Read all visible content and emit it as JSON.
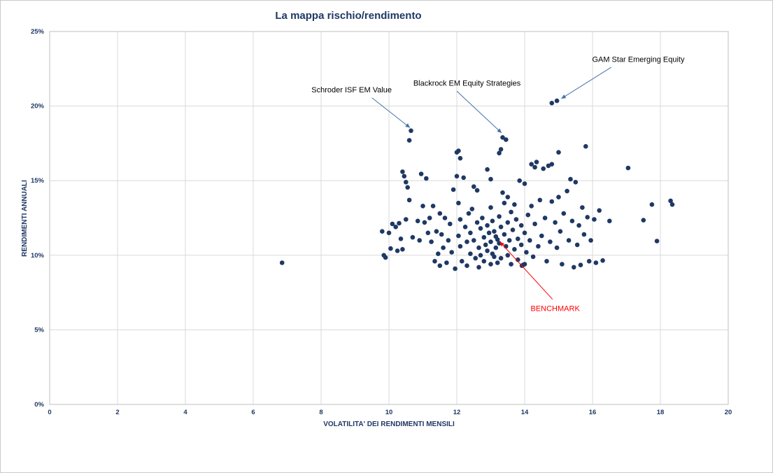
{
  "chart_data": {
    "type": "scatter",
    "title": "La mappa rischio/rendimento",
    "xlabel": "VOLATILITA' DEI RENDIMENTI MENSILI",
    "ylabel": "RENDIMENTI ANNUALI",
    "xlim": [
      0,
      20
    ],
    "ylim": [
      0,
      25
    ],
    "x_ticks": [
      0,
      2,
      4,
      6,
      8,
      10,
      12,
      14,
      16,
      18,
      20
    ],
    "x_tick_labels": [
      "0",
      "2",
      "4",
      "6",
      "8",
      "10",
      "12",
      "14",
      "16",
      "18",
      "20"
    ],
    "y_ticks": [
      0,
      5,
      10,
      15,
      20,
      25
    ],
    "y_tick_labels": [
      "0%",
      "5%",
      "10%",
      "15%",
      "20%",
      "25%"
    ],
    "grid": true,
    "legend": "none",
    "point_color": "#1f3864",
    "grid_color": "#d9d9d9",
    "border_color": "#bfbfbf",
    "axis_text_color": "#1f3864",
    "points": [
      [
        6.85,
        9.5
      ],
      [
        9.8,
        11.6
      ],
      [
        9.85,
        10.0
      ],
      [
        9.9,
        9.85
      ],
      [
        10.0,
        11.5
      ],
      [
        10.05,
        10.45
      ],
      [
        10.1,
        12.1
      ],
      [
        10.2,
        11.9
      ],
      [
        10.25,
        10.3
      ],
      [
        10.3,
        12.15
      ],
      [
        10.35,
        11.1
      ],
      [
        10.4,
        15.6
      ],
      [
        10.4,
        10.4
      ],
      [
        10.45,
        15.3
      ],
      [
        10.5,
        14.9
      ],
      [
        10.5,
        12.4
      ],
      [
        10.55,
        14.55
      ],
      [
        10.6,
        17.7
      ],
      [
        10.65,
        18.35
      ],
      [
        10.6,
        13.7
      ],
      [
        10.7,
        11.2
      ],
      [
        10.85,
        12.3
      ],
      [
        10.9,
        11.0
      ],
      [
        10.95,
        15.45
      ],
      [
        11.0,
        13.3
      ],
      [
        11.05,
        12.2
      ],
      [
        11.1,
        15.15
      ],
      [
        11.15,
        11.5
      ],
      [
        11.2,
        12.5
      ],
      [
        11.25,
        10.9
      ],
      [
        11.3,
        13.3
      ],
      [
        11.35,
        9.6
      ],
      [
        11.4,
        11.6
      ],
      [
        11.45,
        10.1
      ],
      [
        11.5,
        12.8
      ],
      [
        11.5,
        9.3
      ],
      [
        11.55,
        11.4
      ],
      [
        11.6,
        10.5
      ],
      [
        11.65,
        12.5
      ],
      [
        11.7,
        9.5
      ],
      [
        11.75,
        11.0
      ],
      [
        11.8,
        12.1
      ],
      [
        11.85,
        10.2
      ],
      [
        11.9,
        14.4
      ],
      [
        11.95,
        9.1
      ],
      [
        12.0,
        16.9
      ],
      [
        12.0,
        15.3
      ],
      [
        12.05,
        17.0
      ],
      [
        12.05,
        13.5
      ],
      [
        12.05,
        11.3
      ],
      [
        12.1,
        16.5
      ],
      [
        12.1,
        12.4
      ],
      [
        12.1,
        10.6
      ],
      [
        12.15,
        9.6
      ],
      [
        12.2,
        15.2
      ],
      [
        12.25,
        11.9
      ],
      [
        12.3,
        10.9
      ],
      [
        12.3,
        9.3
      ],
      [
        12.35,
        12.8
      ],
      [
        12.4,
        11.5
      ],
      [
        12.4,
        10.1
      ],
      [
        12.45,
        13.1
      ],
      [
        12.5,
        14.6
      ],
      [
        12.5,
        11.0
      ],
      [
        12.55,
        9.8
      ],
      [
        12.6,
        14.35
      ],
      [
        12.6,
        12.2
      ],
      [
        12.65,
        10.5
      ],
      [
        12.65,
        9.2
      ],
      [
        12.7,
        11.8
      ],
      [
        12.7,
        10.0
      ],
      [
        12.75,
        12.5
      ],
      [
        12.8,
        11.2
      ],
      [
        12.8,
        9.6
      ],
      [
        12.85,
        10.7
      ],
      [
        12.9,
        15.75
      ],
      [
        12.9,
        12.0
      ],
      [
        12.9,
        10.3
      ],
      [
        12.95,
        11.5
      ],
      [
        13.0,
        15.1
      ],
      [
        13.0,
        13.2
      ],
      [
        13.0,
        10.9
      ],
      [
        13.0,
        9.4
      ],
      [
        13.05,
        12.3
      ],
      [
        13.05,
        10.1
      ],
      [
        13.1,
        11.6
      ],
      [
        13.1,
        9.9
      ],
      [
        13.15,
        11.25
      ],
      [
        13.15,
        10.5
      ],
      [
        13.2,
        11.05
      ],
      [
        13.2,
        9.5
      ],
      [
        13.25,
        12.6
      ],
      [
        13.25,
        10.8
      ],
      [
        13.3,
        11.9
      ],
      [
        13.3,
        9.8
      ],
      [
        13.25,
        16.85
      ],
      [
        13.3,
        17.1
      ],
      [
        13.35,
        17.9
      ],
      [
        13.45,
        17.75
      ],
      [
        13.35,
        14.2
      ],
      [
        13.4,
        13.5
      ],
      [
        13.4,
        11.4
      ],
      [
        13.45,
        10.6
      ],
      [
        13.5,
        13.9
      ],
      [
        13.5,
        12.2
      ],
      [
        13.5,
        10.0
      ],
      [
        13.55,
        11.0
      ],
      [
        13.6,
        12.9
      ],
      [
        13.6,
        9.4
      ],
      [
        13.65,
        11.7
      ],
      [
        13.7,
        13.4
      ],
      [
        13.7,
        10.4
      ],
      [
        13.75,
        12.4
      ],
      [
        13.8,
        11.1
      ],
      [
        13.8,
        9.7
      ],
      [
        13.85,
        15.0
      ],
      [
        13.9,
        12.0
      ],
      [
        13.9,
        10.7
      ],
      [
        13.92,
        9.3
      ],
      [
        13.95,
        9.35
      ],
      [
        14.0,
        9.4
      ],
      [
        14.0,
        14.8
      ],
      [
        14.0,
        11.5
      ],
      [
        14.05,
        10.2
      ],
      [
        14.1,
        12.7
      ],
      [
        14.15,
        11.0
      ],
      [
        14.2,
        16.1
      ],
      [
        14.2,
        13.3
      ],
      [
        14.25,
        9.9
      ],
      [
        14.3,
        15.9
      ],
      [
        14.3,
        12.1
      ],
      [
        14.35,
        16.25
      ],
      [
        14.4,
        10.6
      ],
      [
        14.45,
        13.7
      ],
      [
        14.5,
        11.3
      ],
      [
        14.55,
        15.8
      ],
      [
        14.6,
        12.5
      ],
      [
        14.65,
        9.6
      ],
      [
        14.7,
        16.0
      ],
      [
        14.75,
        10.9
      ],
      [
        14.8,
        16.1
      ],
      [
        14.8,
        13.6
      ],
      [
        14.8,
        20.2
      ],
      [
        14.95,
        20.35
      ],
      [
        14.9,
        12.2
      ],
      [
        14.95,
        10.5
      ],
      [
        15.0,
        16.9
      ],
      [
        15.0,
        13.9
      ],
      [
        15.05,
        11.6
      ],
      [
        15.1,
        9.4
      ],
      [
        15.15,
        12.8
      ],
      [
        15.25,
        14.3
      ],
      [
        15.3,
        11.0
      ],
      [
        15.35,
        15.1
      ],
      [
        15.4,
        12.3
      ],
      [
        15.45,
        9.2
      ],
      [
        15.5,
        14.9
      ],
      [
        15.55,
        10.7
      ],
      [
        15.6,
        12.0
      ],
      [
        15.65,
        9.35
      ],
      [
        15.7,
        13.2
      ],
      [
        15.75,
        11.4
      ],
      [
        15.8,
        17.3
      ],
      [
        15.85,
        12.55
      ],
      [
        15.9,
        9.6
      ],
      [
        15.95,
        11.0
      ],
      [
        16.05,
        12.4
      ],
      [
        16.1,
        9.5
      ],
      [
        16.2,
        13.0
      ],
      [
        16.3,
        9.65
      ],
      [
        16.5,
        12.3
      ],
      [
        17.05,
        15.85
      ],
      [
        17.5,
        12.35
      ],
      [
        17.75,
        13.4
      ],
      [
        17.9,
        10.95
      ],
      [
        18.3,
        13.65
      ],
      [
        18.35,
        13.4
      ]
    ],
    "annotations": [
      {
        "label": "Schroder ISF EM Value",
        "text_color": "#000000",
        "arrow_color": "#4472a8",
        "text": [
          8.9,
          21.1
        ],
        "arrow_from": [
          9.5,
          20.55
        ],
        "arrow_to": [
          10.62,
          18.55
        ]
      },
      {
        "label": "Blackrock EM Equity Strategies",
        "text_color": "#000000",
        "arrow_color": "#4472a8",
        "text": [
          12.3,
          21.55
        ],
        "arrow_from": [
          12.0,
          21.0
        ],
        "arrow_to": [
          13.32,
          18.2
        ]
      },
      {
        "label": "GAM Star Emerging Equity",
        "text_color": "#000000",
        "arrow_color": "#4472a8",
        "text": [
          17.35,
          23.15
        ],
        "arrow_from": [
          16.55,
          22.6
        ],
        "arrow_to": [
          15.08,
          20.5
        ]
      },
      {
        "label": "BENCHMARK",
        "text_color": "#ff0000",
        "arrow_color": "#ff0000",
        "text": [
          14.9,
          6.45
        ],
        "arrow_from": [
          14.82,
          7.05
        ],
        "arrow_to": [
          13.27,
          10.9
        ]
      }
    ]
  }
}
